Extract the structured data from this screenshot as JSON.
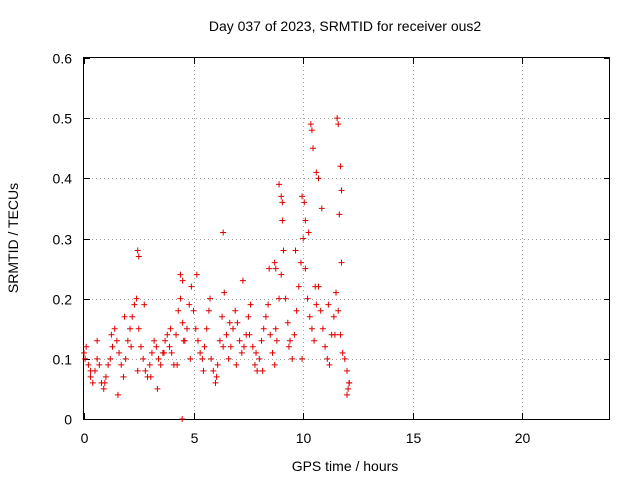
{
  "chart_data": {
    "type": "scatter",
    "title": "Day 037 of 2023, SRMTID for receiver ous2",
    "xlabel": "GPS time / hours",
    "ylabel": "SRMTID / TECUs",
    "xlim": [
      0,
      24
    ],
    "ylim": [
      0,
      0.6
    ],
    "xticks": [
      0,
      5,
      10,
      15,
      20
    ],
    "xtick_labels": [
      "0",
      "5",
      "10",
      "15",
      "20"
    ],
    "yticks": [
      0,
      0.1,
      0.2,
      0.3,
      0.4,
      0.5,
      0.6
    ],
    "ytick_labels": [
      "0",
      "0.1",
      "0.2",
      "0.3",
      "0.4",
      "0.5",
      "0.6"
    ],
    "grid": true,
    "marker": "+",
    "color": "#e00000",
    "series": [
      {
        "name": "SRMTID",
        "x": [
          0.0,
          0.1,
          0.2,
          0.3,
          0.4,
          0.5,
          0.6,
          0.7,
          0.8,
          0.9,
          1.0,
          1.1,
          1.2,
          1.3,
          1.4,
          1.5,
          1.6,
          1.7,
          1.8,
          1.9,
          2.0,
          2.1,
          2.2,
          2.3,
          2.4,
          2.5,
          2.6,
          2.7,
          2.8,
          2.9,
          3.0,
          3.1,
          3.2,
          3.3,
          3.4,
          3.5,
          3.6,
          3.7,
          3.8,
          3.9,
          4.0,
          4.1,
          4.2,
          4.3,
          4.4,
          4.5,
          4.6,
          4.7,
          4.8,
          4.9,
          5.0,
          5.1,
          5.2,
          5.3,
          5.4,
          5.5,
          5.6,
          5.7,
          5.8,
          5.9,
          6.0,
          6.1,
          6.2,
          6.3,
          6.4,
          6.5,
          6.6,
          6.7,
          6.8,
          6.9,
          7.0,
          7.1,
          7.2,
          7.3,
          7.4,
          7.5,
          7.6,
          7.7,
          7.8,
          7.9,
          8.0,
          8.1,
          8.2,
          8.3,
          8.4,
          8.5,
          8.6,
          8.7,
          8.8,
          8.9,
          9.0,
          9.1,
          9.2,
          9.3,
          9.4,
          9.5,
          9.6,
          9.7,
          9.8,
          9.9,
          10.0,
          10.1,
          10.2,
          10.3,
          10.4,
          10.5,
          10.6,
          10.7,
          10.8,
          10.9,
          11.0,
          11.1,
          11.2,
          11.3,
          11.4,
          11.5,
          11.6,
          11.7,
          11.8,
          11.9,
          12.0,
          12.1,
          0.05,
          0.3,
          0.6,
          0.95,
          1.25,
          1.55,
          1.85,
          2.15,
          2.45,
          2.75,
          3.05,
          3.35,
          3.65,
          3.95,
          4.25,
          4.55,
          4.85,
          5.15,
          5.45,
          5.75,
          6.05,
          6.35,
          6.65,
          6.95,
          7.25,
          7.55,
          7.85,
          8.15,
          8.45,
          8.75,
          9.05,
          9.35,
          9.65,
          9.95,
          10.25,
          10.55,
          10.85,
          11.15,
          11.45,
          11.75,
          12.05,
          2.45,
          2.5,
          4.4,
          4.5,
          6.35,
          8.9,
          9.0,
          9.05,
          10.35,
          10.4,
          10.45,
          11.55,
          11.6,
          11.65,
          10.05,
          10.1,
          9.95,
          10.6,
          10.7,
          8.7,
          8.75,
          11.7,
          11.75,
          4.48,
          12.0,
          12.1
        ],
        "y": [
          0.11,
          0.12,
          0.09,
          0.07,
          0.06,
          0.08,
          0.1,
          0.09,
          0.06,
          0.05,
          0.07,
          0.09,
          0.1,
          0.12,
          0.15,
          0.13,
          0.11,
          0.09,
          0.07,
          0.1,
          0.13,
          0.15,
          0.17,
          0.19,
          0.2,
          0.15,
          0.12,
          0.1,
          0.08,
          0.07,
          0.09,
          0.11,
          0.13,
          0.12,
          0.1,
          0.09,
          0.11,
          0.13,
          0.14,
          0.12,
          0.11,
          0.09,
          0.14,
          0.18,
          0.2,
          0.16,
          0.13,
          0.15,
          0.19,
          0.22,
          0.18,
          0.15,
          0.13,
          0.11,
          0.1,
          0.12,
          0.15,
          0.18,
          0.1,
          0.08,
          0.06,
          0.09,
          0.13,
          0.17,
          0.21,
          0.14,
          0.1,
          0.12,
          0.15,
          0.18,
          0.16,
          0.13,
          0.11,
          0.12,
          0.14,
          0.17,
          0.19,
          0.12,
          0.09,
          0.08,
          0.1,
          0.13,
          0.15,
          0.17,
          0.19,
          0.14,
          0.11,
          0.09,
          0.13,
          0.2,
          0.24,
          0.28,
          0.2,
          0.16,
          0.13,
          0.1,
          0.14,
          0.18,
          0.22,
          0.26,
          0.3,
          0.25,
          0.2,
          0.17,
          0.15,
          0.13,
          0.19,
          0.22,
          0.18,
          0.15,
          0.12,
          0.1,
          0.09,
          0.14,
          0.17,
          0.21,
          0.18,
          0.14,
          0.11,
          0.1,
          0.08,
          0.06,
          0.1,
          0.08,
          0.13,
          0.06,
          0.14,
          0.04,
          0.17,
          0.12,
          0.08,
          0.19,
          0.07,
          0.05,
          0.11,
          0.15,
          0.09,
          0.13,
          0.1,
          0.24,
          0.08,
          0.2,
          0.07,
          0.12,
          0.16,
          0.09,
          0.23,
          0.14,
          0.11,
          0.08,
          0.25,
          0.15,
          0.33,
          0.12,
          0.28,
          0.1,
          0.31,
          0.22,
          0.35,
          0.19,
          0.14,
          0.26,
          0.05,
          0.28,
          0.27,
          0.24,
          0.23,
          0.31,
          0.39,
          0.37,
          0.36,
          0.49,
          0.48,
          0.45,
          0.5,
          0.49,
          0.34,
          0.36,
          0.33,
          0.37,
          0.41,
          0.4,
          0.26,
          0.25,
          0.42,
          0.38,
          0.0,
          0.04,
          0.06
        ]
      }
    ]
  }
}
